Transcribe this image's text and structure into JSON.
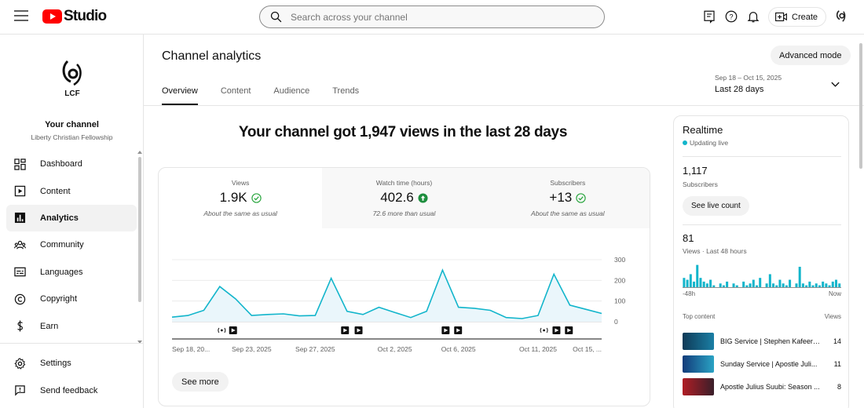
{
  "header": {
    "logo_text": "Studio",
    "search_placeholder": "Search across your channel",
    "create_label": "Create"
  },
  "sidebar": {
    "channel_logo_text": "LCF",
    "your_channel": "Your channel",
    "channel_name": "Liberty Christian Fellowship",
    "items": [
      {
        "label": "Dashboard",
        "icon": "dashboard-icon"
      },
      {
        "label": "Content",
        "icon": "content-icon"
      },
      {
        "label": "Analytics",
        "icon": "analytics-icon",
        "active": true
      },
      {
        "label": "Community",
        "icon": "community-icon"
      },
      {
        "label": "Languages",
        "icon": "languages-icon"
      },
      {
        "label": "Copyright",
        "icon": "copyright-icon"
      },
      {
        "label": "Earn",
        "icon": "earn-icon"
      }
    ],
    "bottom_items": [
      {
        "label": "Settings",
        "icon": "gear-icon"
      },
      {
        "label": "Send feedback",
        "icon": "feedback-icon"
      }
    ]
  },
  "main": {
    "title": "Channel analytics",
    "advanced_mode": "Advanced mode",
    "tabs": [
      "Overview",
      "Content",
      "Audience",
      "Trends"
    ],
    "active_tab": "Overview",
    "date_range": {
      "dates": "Sep 18 – Oct 15, 2025",
      "label": "Last 28 days"
    },
    "headline": "Your channel got 1,947 views in the last 28 days",
    "metrics": [
      {
        "label": "Views",
        "value": "1.9K",
        "note": "About the same as usual",
        "status": "check"
      },
      {
        "label": "Watch time (hours)",
        "value": "402.6",
        "note": "72.6 more than usual",
        "status": "up"
      },
      {
        "label": "Subscribers",
        "value": "+13",
        "note": "About the same as usual",
        "status": "check"
      }
    ],
    "see_more": "See more"
  },
  "chart_data": {
    "type": "area",
    "ylim": [
      0,
      300
    ],
    "yticks": [
      "300",
      "200",
      "100",
      "0"
    ],
    "values": [
      22,
      30,
      55,
      170,
      110,
      30,
      35,
      38,
      28,
      30,
      210,
      50,
      35,
      70,
      45,
      20,
      50,
      250,
      70,
      65,
      55,
      20,
      15,
      30,
      230,
      80,
      60,
      40
    ],
    "xticks": [
      {
        "label": "Sep 18, 20...",
        "index": 0
      },
      {
        "label": "Sep 23, 2025",
        "index": 5
      },
      {
        "label": "Sep 27, 2025",
        "index": 9
      },
      {
        "label": "Oct 2, 2025",
        "index": 14
      },
      {
        "label": "Oct 6, 2025",
        "index": 18
      },
      {
        "label": "Oct 11, 2025",
        "index": 23
      },
      {
        "label": "Oct 15, ...",
        "index": 27
      }
    ],
    "markers": [
      {
        "index": 4.4,
        "kind": "live"
      },
      {
        "index": 5.4,
        "kind": "video"
      },
      {
        "index": 15.3,
        "kind": "video"
      },
      {
        "index": 16.5,
        "kind": "video"
      },
      {
        "index": 24.2,
        "kind": "video"
      },
      {
        "index": 25.3,
        "kind": "video"
      },
      {
        "index": 32.9,
        "kind": "live"
      },
      {
        "index": 34.0,
        "kind": "video"
      },
      {
        "index": 35.1,
        "kind": "video"
      }
    ],
    "color": "#12b5cb"
  },
  "realtime": {
    "title": "Realtime",
    "status": "Updating live",
    "subscribers": "1,117",
    "subscribers_label": "Subscribers",
    "live_count_button": "See live count",
    "views": "81",
    "views_label": "Views · Last 48 hours",
    "bars": [
      0,
      0,
      0,
      1,
      0,
      0,
      0,
      0,
      0,
      0,
      0,
      0,
      0,
      0,
      0,
      0,
      0,
      0,
      0,
      0,
      0,
      0,
      0,
      0,
      0,
      0,
      0,
      0,
      0,
      0,
      0,
      0,
      0,
      0,
      0,
      0,
      0,
      0,
      0,
      0,
      0,
      0,
      0,
      0,
      0,
      0,
      0,
      0
    ],
    "axis_start": "-48h",
    "axis_end": "Now",
    "top_content_label": "Top content",
    "top_content_views_label": "Views",
    "top_content": [
      {
        "title": "BIG Service | Stephen Kafeero...",
        "views": "14",
        "thumb": "#1b6a8a"
      },
      {
        "title": "Sunday Service | Apostle Juli...",
        "views": "11",
        "thumb": "#1f4d8f"
      },
      {
        "title": "Apostle Julius Suubi: Season ...",
        "views": "8",
        "thumb": "#c8242b"
      }
    ]
  }
}
